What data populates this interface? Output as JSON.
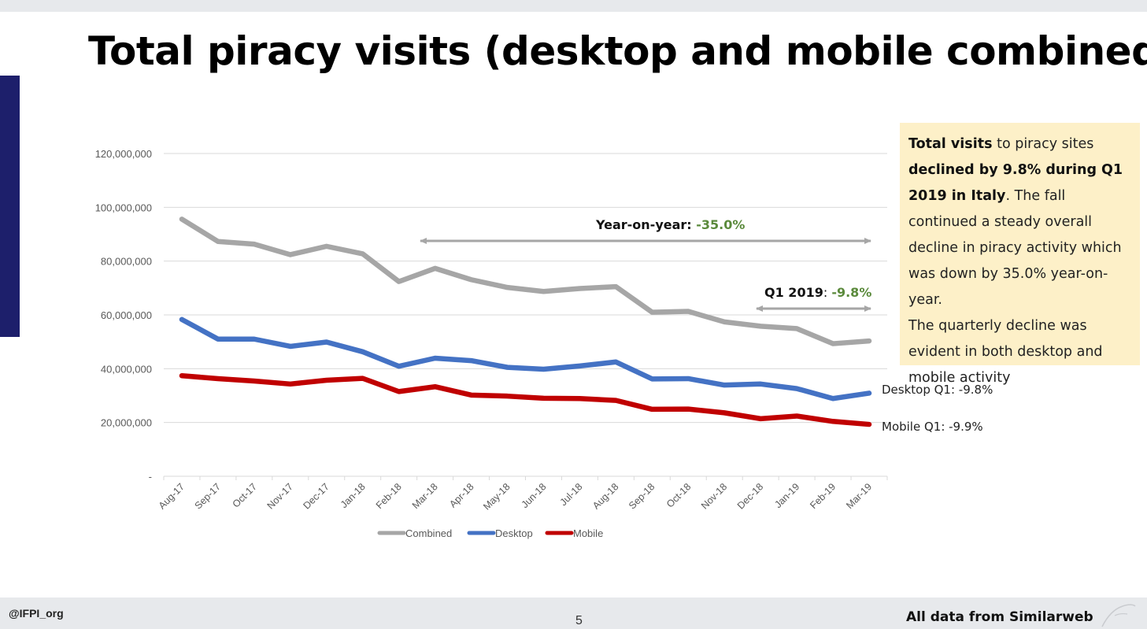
{
  "slide": {
    "title": "Total piracy visits (desktop and mobile combined)",
    "footer_handle": "@IFPI_org",
    "page_number": "5",
    "footer_source": "All data from Similarweb"
  },
  "info_box": {
    "p1": "Total visits",
    "p2": " to piracy sites ",
    "p3": "declined by 9.8% during Q1 2019 in Italy",
    "p4": ". The fall continued a steady overall decline in piracy activity which was down by 35.0% year-on-year.",
    "p5": "The quarterly decline was evident in both desktop and mobile activity"
  },
  "annotations": {
    "yoy_label": "Year-on-year: ",
    "yoy_value": "-35.0%",
    "q1_label": "Q1 2019",
    "q1_sep": ": ",
    "q1_value": "-9.8%",
    "desktop_end": "Desktop Q1: -9.8%",
    "mobile_end": "Mobile Q1: -9.9%"
  },
  "colors": {
    "combined": "#a6a6a6",
    "desktop": "#4472c4",
    "mobile": "#c00000",
    "arrow": "#a6a6a6",
    "highlight_green": "#5b8a3c",
    "accent_navy": "#1d1f6b",
    "box_fill": "#fdf0c8"
  },
  "chart_data": {
    "type": "line",
    "categories": [
      "Aug-17",
      "Sep-17",
      "Oct-17",
      "Nov-17",
      "Dec-17",
      "Jan-18",
      "Feb-18",
      "Mar-18",
      "Apr-18",
      "May-18",
      "Jun-18",
      "Jul-18",
      "Aug-18",
      "Sep-18",
      "Oct-18",
      "Nov-18",
      "Dec-18",
      "Jan-19",
      "Feb-19",
      "Mar-19"
    ],
    "series": [
      {
        "name": "Combined",
        "values": [
          95600000,
          87300000,
          86300000,
          82400000,
          85500000,
          82700000,
          72400000,
          77300000,
          73100000,
          70200000,
          68700000,
          69800000,
          70500000,
          61000000,
          61300000,
          57400000,
          55800000,
          54900000,
          49300000,
          50300000
        ]
      },
      {
        "name": "Desktop",
        "values": [
          58300000,
          51000000,
          51000000,
          48300000,
          49900000,
          46300000,
          40900000,
          43900000,
          43000000,
          40500000,
          39800000,
          41000000,
          42500000,
          36200000,
          36300000,
          33900000,
          34300000,
          32600000,
          28900000,
          30900000
        ]
      },
      {
        "name": "Mobile",
        "values": [
          37400000,
          36300000,
          35400000,
          34300000,
          35700000,
          36400000,
          31500000,
          33300000,
          30200000,
          29800000,
          29000000,
          28900000,
          28200000,
          24900000,
          25000000,
          23600000,
          21400000,
          22400000,
          20400000,
          19300000
        ]
      }
    ],
    "yticks": [
      "-",
      "20,000,000",
      "40,000,000",
      "60,000,000",
      "80,000,000",
      "100,000,000",
      "120,000,000"
    ],
    "ylim": [
      0,
      120000000
    ],
    "grid": true,
    "legend": "bottom"
  }
}
